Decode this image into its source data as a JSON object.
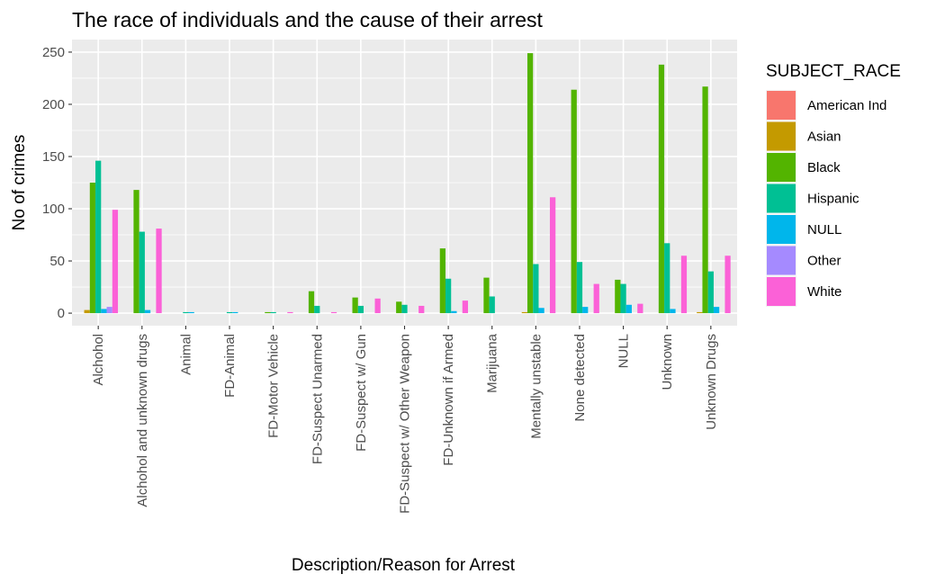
{
  "chart_data": {
    "type": "bar",
    "title": "The race of individuals and the cause of their arrest",
    "xlabel": "Description/Reason for Arrest",
    "ylabel": "No of crimes",
    "ylim": [
      -12,
      262
    ],
    "yticks": [
      0,
      50,
      100,
      150,
      200,
      250
    ],
    "grid": true,
    "legend_position": "right",
    "legend_title": "SUBJECT_RACE",
    "categories": [
      "Alchohol",
      "Alchohol and unknown drugs",
      "Animal",
      "FD-Animal",
      "FD-Motor Vehicle",
      "FD-Suspect Unarmed",
      "FD-Suspect w/ Gun",
      "FD-Suspect w/ Other Weapon",
      "FD-Unknown if Armed",
      "Marijuana",
      "Mentally unstable",
      "None detected",
      "NULL",
      "Unknown",
      "Unknown Drugs"
    ],
    "series": [
      {
        "name": "American Ind",
        "color": "#F8766D",
        "values": [
          0,
          0,
          0,
          0,
          0,
          0,
          0,
          0,
          0,
          0,
          0,
          0,
          0,
          0,
          0
        ]
      },
      {
        "name": "Asian",
        "color": "#C49A00",
        "values": [
          3,
          0,
          0,
          0,
          0,
          0,
          0,
          0,
          0,
          0,
          1,
          0,
          0,
          0,
          1
        ]
      },
      {
        "name": "Black",
        "color": "#53B400",
        "values": [
          125,
          118,
          0,
          0,
          1,
          21,
          15,
          11,
          62,
          34,
          249,
          214,
          32,
          238,
          217
        ]
      },
      {
        "name": "Hispanic",
        "color": "#00C094",
        "values": [
          146,
          78,
          1,
          1,
          1,
          7,
          7,
          8,
          33,
          16,
          47,
          49,
          28,
          67,
          40
        ]
      },
      {
        "name": "NULL",
        "color": "#00B6EB",
        "values": [
          4,
          3,
          1,
          1,
          0,
          0,
          0,
          0,
          2,
          0,
          5,
          6,
          8,
          4,
          6
        ]
      },
      {
        "name": "Other",
        "color": "#A58AFF",
        "values": [
          6,
          0,
          0,
          0,
          0,
          0,
          0,
          0,
          0,
          0,
          0,
          0,
          0,
          0,
          0
        ]
      },
      {
        "name": "White",
        "color": "#FB61D7",
        "values": [
          99,
          81,
          0,
          0,
          1,
          1,
          14,
          7,
          12,
          0,
          111,
          28,
          9,
          55,
          55
        ]
      }
    ]
  }
}
